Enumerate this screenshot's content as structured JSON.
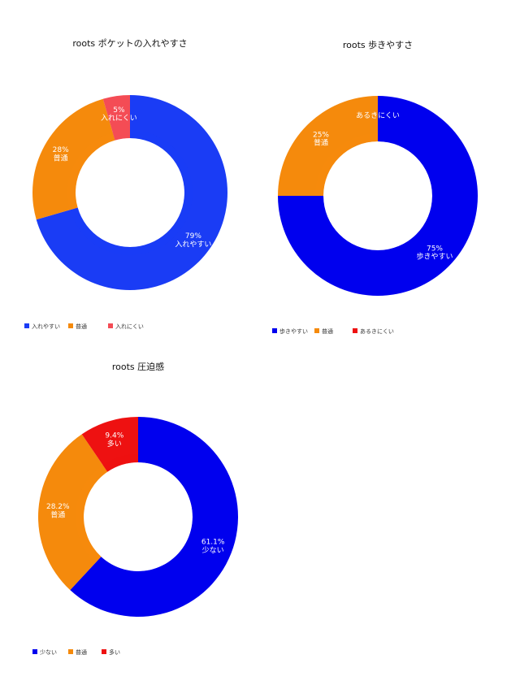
{
  "chart_data": [
    {
      "type": "pie",
      "donut": true,
      "title": "roots ポケットの入れやすさ",
      "categories": [
        "入れやすい",
        "普通",
        "入れにくい"
      ],
      "values": [
        79,
        28,
        5
      ],
      "value_labels": [
        "79%",
        "28%",
        "5%"
      ],
      "colors": [
        "#1a3cf5",
        "#f58a0c",
        "#f44c55"
      ],
      "legend": "bottom-left"
    },
    {
      "type": "pie",
      "donut": true,
      "title": "roots 歩きやすさ",
      "categories": [
        "歩きやすい",
        "普通",
        "あるきにくい"
      ],
      "values": [
        75,
        25,
        0
      ],
      "value_labels": [
        "75%",
        "25%",
        ""
      ],
      "colors": [
        "#0000ee",
        "#f58a0c",
        "#ee1111"
      ],
      "legend": "bottom-left"
    },
    {
      "type": "pie",
      "donut": true,
      "title": "roots 圧迫感",
      "categories": [
        "少ない",
        "普通",
        "多い"
      ],
      "values": [
        61.1,
        28.2,
        9.4
      ],
      "value_labels": [
        "61.1%",
        "28.2%",
        "9.4%"
      ],
      "colors": [
        "#0000ee",
        "#f58a0c",
        "#ee1111"
      ],
      "legend": "bottom-left"
    }
  ]
}
